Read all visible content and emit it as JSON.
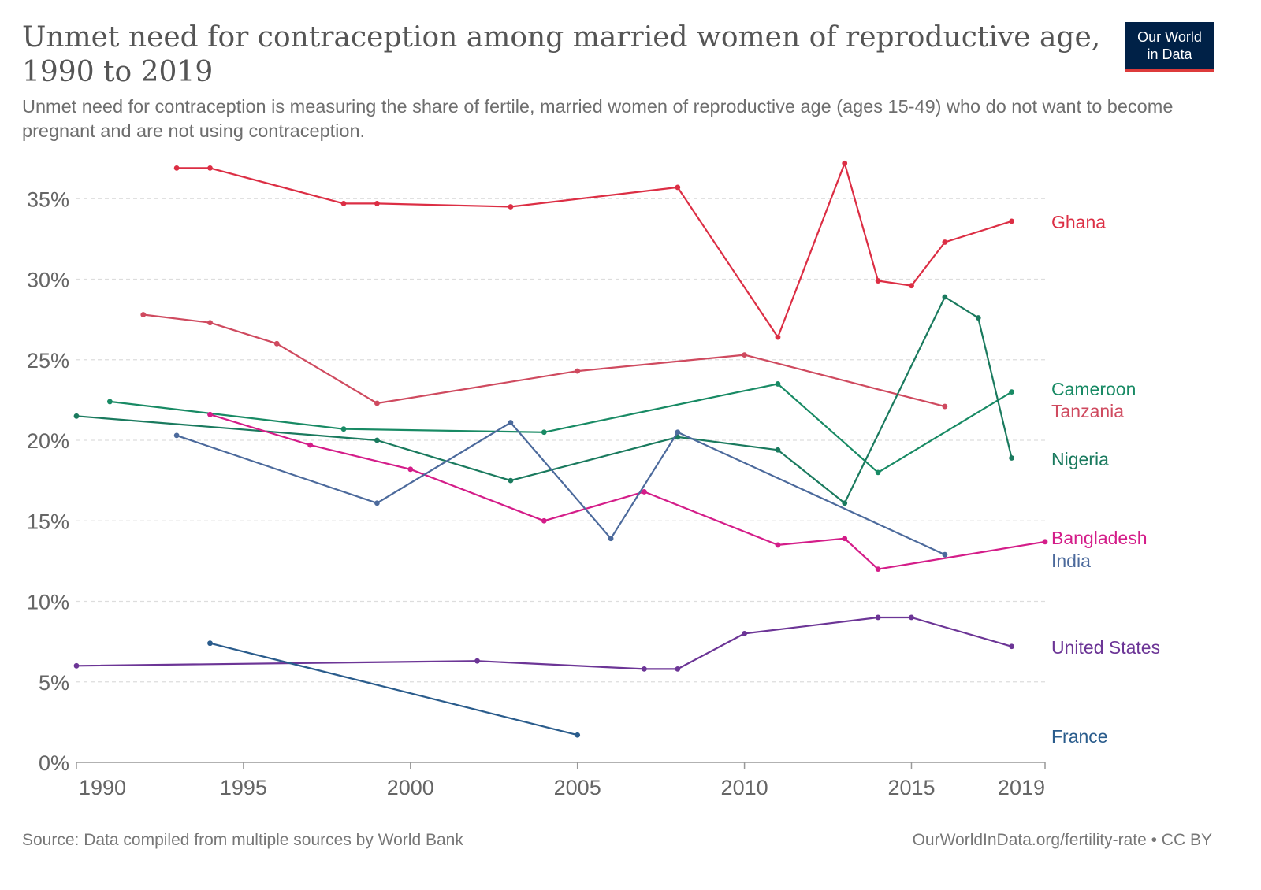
{
  "header": {
    "title": "Unmet need for contraception among married women of reproductive age, 1990 to 2019",
    "subtitle": "Unmet need for contraception is measuring the share of fertile, married women of reproductive age (ages 15-49) who do not want to become pregnant and are not using contraception.",
    "logo_line1": "Our World",
    "logo_line2": "in Data",
    "logo_colors": {
      "background": "#002147",
      "underline": "#dd3b3b"
    }
  },
  "footer": {
    "source": "Source: Data compiled from multiple sources by World Bank",
    "license": "OurWorldInData.org/fertility-rate • CC BY"
  },
  "chart_data": {
    "type": "line",
    "title": "Unmet need for contraception among married women of reproductive age, 1990 to 2019",
    "xlabel": "",
    "ylabel": "",
    "xlim": [
      1990,
      2019
    ],
    "ylim": [
      0,
      37
    ],
    "grid": "horizontal dashed",
    "legend": "right, end-of-line labels",
    "x_ticks": [
      1990,
      1995,
      2000,
      2005,
      2010,
      2015,
      2019
    ],
    "x_tick_labels": [
      "1990",
      "1995",
      "2000",
      "2005",
      "2010",
      "2015",
      "2019"
    ],
    "y_ticks": [
      0,
      5,
      10,
      15,
      20,
      25,
      30,
      35
    ],
    "y_tick_labels": [
      "0%",
      "5%",
      "10%",
      "15%",
      "20%",
      "25%",
      "30%",
      "35%"
    ],
    "series": [
      {
        "name": "Ghana",
        "color": "#dc2e44",
        "points": [
          [
            1993,
            36.9
          ],
          [
            1994,
            36.9
          ],
          [
            1998,
            34.7
          ],
          [
            1999,
            34.7
          ],
          [
            2003,
            34.5
          ],
          [
            2008,
            35.7
          ],
          [
            2011,
            26.4
          ],
          [
            2013,
            37.2
          ],
          [
            2014,
            29.9
          ],
          [
            2015,
            29.6
          ],
          [
            2016,
            32.3
          ],
          [
            2018,
            33.6
          ]
        ]
      },
      {
        "name": "Cameroon",
        "color": "#188a64",
        "points": [
          [
            1991,
            22.4
          ],
          [
            1998,
            20.7
          ],
          [
            2004,
            20.5
          ],
          [
            2011,
            23.5
          ],
          [
            2014,
            18.0
          ],
          [
            2018,
            23.0
          ]
        ]
      },
      {
        "name": "Tanzania",
        "color": "#cf4a5f",
        "points": [
          [
            1992,
            27.8
          ],
          [
            1994,
            27.3
          ],
          [
            1996,
            26.0
          ],
          [
            1999,
            22.3
          ],
          [
            2005,
            24.3
          ],
          [
            2010,
            25.3
          ],
          [
            2016,
            22.1
          ]
        ]
      },
      {
        "name": "Nigeria",
        "color": "#1a7a5e",
        "points": [
          [
            1990,
            21.5
          ],
          [
            1999,
            20.0
          ],
          [
            2003,
            17.5
          ],
          [
            2008,
            20.2
          ],
          [
            2011,
            19.4
          ],
          [
            2013,
            16.1
          ],
          [
            2016,
            28.9
          ],
          [
            2017,
            27.6
          ],
          [
            2018,
            18.9
          ]
        ]
      },
      {
        "name": "Bangladesh",
        "color": "#d41d89",
        "points": [
          [
            1994,
            21.6
          ],
          [
            1997,
            19.7
          ],
          [
            2000,
            18.2
          ],
          [
            2004,
            15.0
          ],
          [
            2007,
            16.8
          ],
          [
            2011,
            13.5
          ],
          [
            2013,
            13.9
          ],
          [
            2014,
            12.0
          ],
          [
            2019,
            13.7
          ]
        ]
      },
      {
        "name": "India",
        "color": "#4c6a9c",
        "points": [
          [
            1993,
            20.3
          ],
          [
            1999,
            16.1
          ],
          [
            2003,
            21.1
          ],
          [
            2006,
            13.9
          ],
          [
            2008,
            20.5
          ],
          [
            2016,
            12.9
          ]
        ]
      },
      {
        "name": "United States",
        "color": "#6c3596",
        "points": [
          [
            1990,
            6.0
          ],
          [
            2002,
            6.3
          ],
          [
            2007,
            5.8
          ],
          [
            2008,
            5.8
          ],
          [
            2010,
            8.0
          ],
          [
            2014,
            9.0
          ],
          [
            2015,
            9.0
          ],
          [
            2018,
            7.2
          ]
        ]
      },
      {
        "name": "France",
        "color": "#2a5c8c",
        "points": [
          [
            1994,
            7.4
          ],
          [
            2005,
            1.7
          ]
        ]
      }
    ]
  }
}
